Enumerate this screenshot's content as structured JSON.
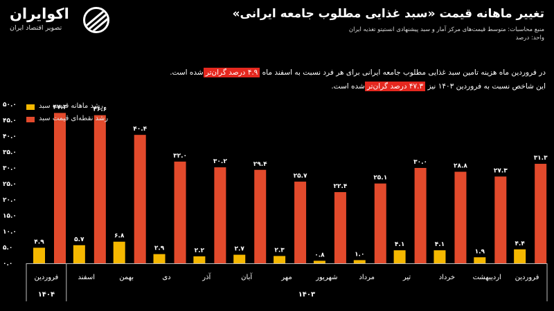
{
  "header": {
    "title": "تغییر ماهانه قیمت «سبد غذایی مطلوب جامعه ایرانی»",
    "source": "منبع محاسبات: متوسط قیمت‌های مرکز آمار و سبد پیشنهادی انستیتو تغذیه ایران",
    "unit": "واحد: درصد"
  },
  "logo": {
    "name": "اکوایران",
    "tagline": "تصویر اقتصاد ایران",
    "icon": "ecoiran-logo-icon"
  },
  "description": {
    "line1_pre": "در فروردین ماه هزینه تامین سبد غذایی مطلوب جامعه ایرانی برای هر فرد نسبت به اسفند ماه",
    "line1_highlight": "۴.۹ درصد گران‌تر",
    "line1_post": "شده است.",
    "line2_pre": "این شاخص نسبت به فروردین ۱۴۰۳ نیز",
    "line2_highlight": "۴۷.۳ درصد گران‌تر",
    "line2_post": "شده است."
  },
  "colors": {
    "monthly": "#f5b800",
    "point": "#e24a2c",
    "highlight": "#e5281f",
    "background": "#000000"
  },
  "chart_data": {
    "type": "bar",
    "categories": [
      "فروردین",
      "اردیبهشت",
      "خرداد",
      "تیر",
      "مرداد",
      "شهریور",
      "مهر",
      "آبان",
      "آذر",
      "دی",
      "بهمن",
      "اسفند",
      "فروردین"
    ],
    "year_groups": [
      {
        "label": "۱۴۰۳",
        "count": 12
      },
      {
        "label": "۱۴۰۴",
        "count": 1
      }
    ],
    "series": [
      {
        "name": "رشد ماهانه قیمت سبد",
        "values": [
          4.4,
          1.9,
          4.1,
          4.1,
          1.0,
          0.8,
          2.3,
          2.7,
          2.2,
          2.9,
          6.8,
          5.7,
          4.9
        ],
        "labels": [
          "۴.۴",
          "۱.۹",
          "۴.۱",
          "۴.۱",
          "۱.۰",
          "۰.۸",
          "۲.۳",
          "۲.۷",
          "۲.۲",
          "۲.۹",
          "۶.۸",
          "۵.۷",
          "۴.۹"
        ]
      },
      {
        "name": "رشد نقطه‌ای قیمت سبد",
        "values": [
          31.3,
          27.3,
          28.8,
          30.0,
          25.1,
          22.4,
          25.7,
          29.4,
          30.2,
          32.0,
          40.4,
          46.6,
          47.3
        ],
        "labels": [
          "۳۱.۳",
          "۲۷.۳",
          "۲۸.۸",
          "۳۰.۰",
          "۲۵.۱",
          "۲۲.۴",
          "۲۵.۷",
          "۲۹.۴",
          "۳۰.۲",
          "۳۲.۰",
          "۴۰.۴",
          "۴۶.۶",
          "۴۷.۳"
        ]
      }
    ],
    "y_ticks": [
      {
        "v": 0,
        "label": "۰.۰"
      },
      {
        "v": 5,
        "label": "۵.۰"
      },
      {
        "v": 10,
        "label": "۱۰.۰"
      },
      {
        "v": 15,
        "label": "۱۵.۰"
      },
      {
        "v": 20,
        "label": "۲۰.۰"
      },
      {
        "v": 25,
        "label": "۲۵.۰"
      },
      {
        "v": 30,
        "label": "۳۰.۰"
      },
      {
        "v": 35,
        "label": "۳۵.۰"
      },
      {
        "v": 40,
        "label": "۴۰.۰"
      },
      {
        "v": 45,
        "label": "۴۵.۰"
      },
      {
        "v": 50,
        "label": "۵۰.۰"
      }
    ],
    "ylim": [
      0,
      50
    ],
    "legend_position": "top-left",
    "grid": false
  }
}
